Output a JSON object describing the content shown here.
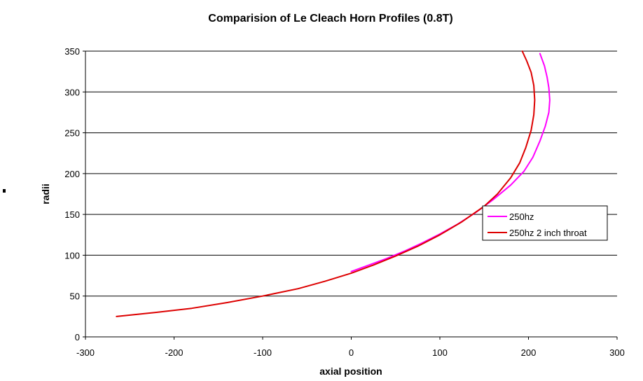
{
  "chart_data": {
    "type": "line",
    "title": "Comparision of Le Cleach Horn Profiles (0.8T)",
    "xlabel": "axial position",
    "ylabel": "radii",
    "xlim": [
      -300,
      300
    ],
    "ylim": [
      0,
      350
    ],
    "xticks": [
      -300,
      -200,
      -100,
      0,
      100,
      200,
      300
    ],
    "yticks": [
      0,
      50,
      100,
      150,
      200,
      250,
      300,
      350
    ],
    "grid": "horizontal",
    "legend_position": "right",
    "series": [
      {
        "name": "250hz",
        "color": "#ff00ff",
        "points": [
          [
            0,
            80
          ],
          [
            20,
            88
          ],
          [
            40,
            96
          ],
          [
            60,
            105
          ],
          [
            80,
            115
          ],
          [
            100,
            126
          ],
          [
            120,
            138
          ],
          [
            140,
            152
          ],
          [
            160,
            168
          ],
          [
            180,
            186
          ],
          [
            195,
            203
          ],
          [
            205,
            220
          ],
          [
            213,
            240
          ],
          [
            219,
            258
          ],
          [
            223,
            275
          ],
          [
            224,
            290
          ],
          [
            223,
            305
          ],
          [
            221,
            318
          ],
          [
            218,
            332
          ],
          [
            213,
            347
          ]
        ]
      },
      {
        "name": "250hz 2 inch throat",
        "color": "#dd0000",
        "points": [
          [
            -265,
            25
          ],
          [
            -220,
            30
          ],
          [
            -180,
            35
          ],
          [
            -140,
            42
          ],
          [
            -100,
            50
          ],
          [
            -60,
            59
          ],
          [
            -30,
            68
          ],
          [
            0,
            78
          ],
          [
            25,
            88
          ],
          [
            50,
            99
          ],
          [
            75,
            111
          ],
          [
            100,
            125
          ],
          [
            125,
            141
          ],
          [
            150,
            160
          ],
          [
            165,
            175
          ],
          [
            180,
            195
          ],
          [
            190,
            213
          ],
          [
            197,
            232
          ],
          [
            203,
            253
          ],
          [
            206,
            272
          ],
          [
            207,
            290
          ],
          [
            206,
            308
          ],
          [
            203,
            324
          ],
          [
            198,
            338
          ],
          [
            193,
            350
          ]
        ]
      }
    ]
  }
}
